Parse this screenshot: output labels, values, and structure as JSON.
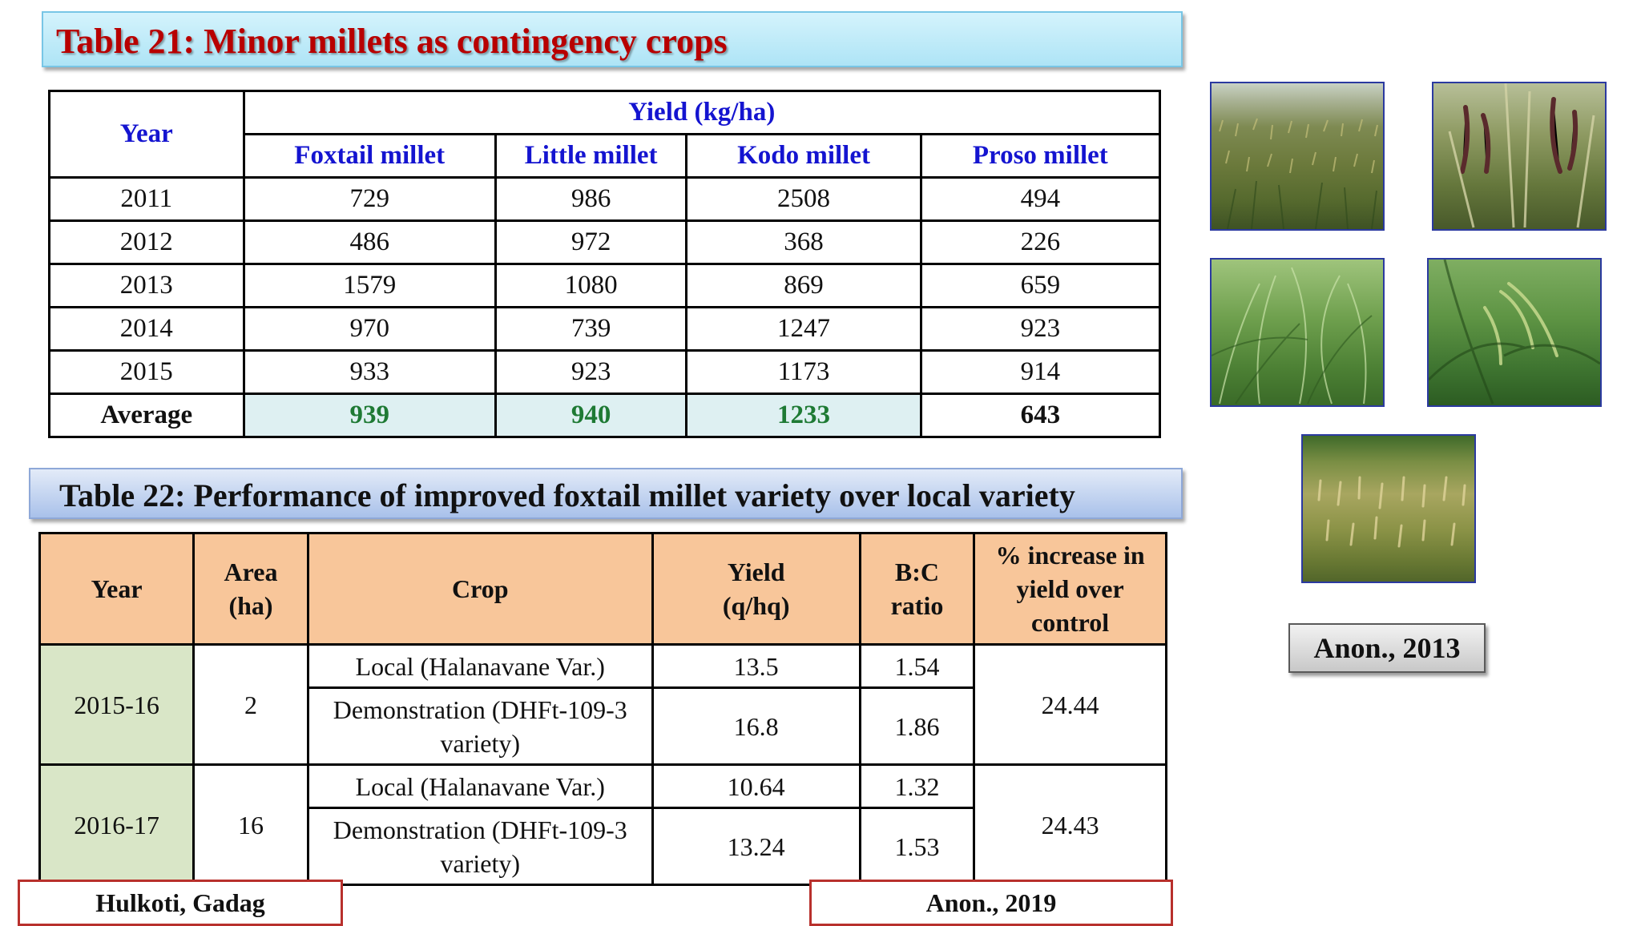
{
  "table21": {
    "title": "Table 21: Minor millets as contingency crops",
    "year_header": "Year",
    "yield_header": "Yield (kg/ha)",
    "columns": [
      "Foxtail millet",
      "Little millet",
      "Kodo millet",
      "Proso millet"
    ],
    "rows": [
      {
        "year": "2011",
        "values": [
          "729",
          "986",
          "2508",
          "494"
        ]
      },
      {
        "year": "2012",
        "values": [
          "486",
          "972",
          "368",
          "226"
        ]
      },
      {
        "year": "2013",
        "values": [
          "1579",
          "1080",
          "869",
          "659"
        ]
      },
      {
        "year": "2014",
        "values": [
          "970",
          "739",
          "1247",
          "923"
        ]
      },
      {
        "year": "2015",
        "values": [
          "933",
          "923",
          "1173",
          "914"
        ]
      }
    ],
    "average": {
      "label": "Average",
      "values": [
        "939",
        "940",
        "1233",
        "643"
      ]
    }
  },
  "table22": {
    "title": "Table 22: Performance of improved foxtail millet variety over local variety",
    "headers": {
      "year": "Year",
      "area": "Area (ha)",
      "crop": "Crop",
      "yield": "Yield (q/hq)",
      "bc": "B:C ratio",
      "increase": "% increase in yield over control"
    },
    "groups": [
      {
        "year": "2015-16",
        "area": "2",
        "increase": "24.44",
        "rows": [
          {
            "crop": "Local (Halanavane Var.)",
            "yield": "13.5",
            "bc": "1.54"
          },
          {
            "crop": "Demonstration (DHFt-109-3 variety)",
            "yield": "16.8",
            "bc": "1.86"
          }
        ]
      },
      {
        "year": "2016-17",
        "area": "16",
        "increase": "24.43",
        "rows": [
          {
            "crop": "Local (Halanavane Var.)",
            "yield": "10.64",
            "bc": "1.32"
          },
          {
            "crop": "Demonstration (DHFt-109-3 variety)",
            "yield": "13.24",
            "bc": "1.53"
          }
        ]
      }
    ]
  },
  "references": {
    "photos_source": "Anon., 2013",
    "location": "Hulkoti, Gadag",
    "table_source": "Anon., 2019"
  },
  "photos": [
    {
      "name": "millet-field-photo",
      "palette": "foxtail-field"
    },
    {
      "name": "millet-panicles-photo",
      "palette": "dark-panicles"
    },
    {
      "name": "green-millet-crop-photo",
      "palette": "green-crop"
    },
    {
      "name": "millet-earheads-photo",
      "palette": "green-earheads"
    },
    {
      "name": "mature-millet-field-photo",
      "palette": "mature-field"
    }
  ],
  "colors": {
    "title1_text": "#b80000",
    "header_blue": "#1414d0",
    "average_green": "#1e7a34",
    "table22_header_bg": "#f8c69a",
    "table22_year_bg": "#d9e6c7",
    "reference_border": "#b8302c"
  }
}
